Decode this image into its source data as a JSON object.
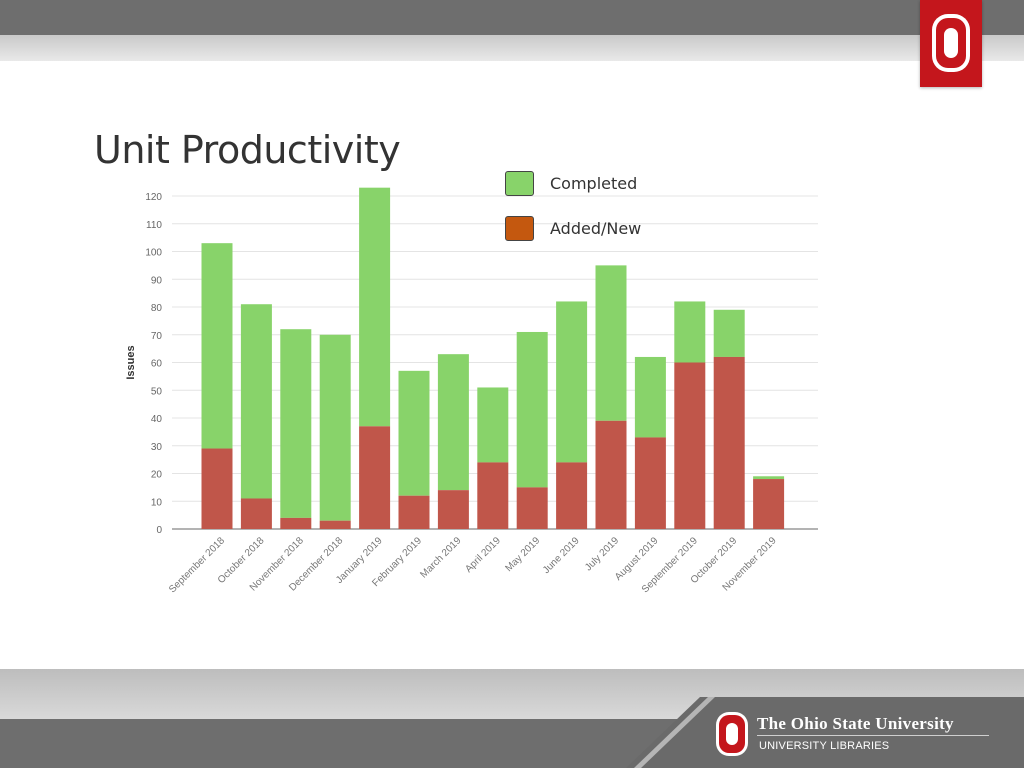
{
  "slide": {
    "title": "Unit Productivity",
    "footer": {
      "university": "The Ohio State University",
      "department": "UNIVERSITY LIBRARIES"
    }
  },
  "colors": {
    "completed": "#88d36a",
    "added_new": "#c0564a",
    "legend_added_new": "#c4580f",
    "brand_red": "#c4161c"
  },
  "chart_data": {
    "type": "bar",
    "stacked": true,
    "ylabel": "Issues",
    "xlabel": "",
    "ylim": [
      0,
      120
    ],
    "yticks": [
      0,
      10,
      20,
      30,
      40,
      50,
      60,
      70,
      80,
      90,
      100,
      110,
      120
    ],
    "grid": true,
    "legend_position": "top-right",
    "categories": [
      "September 2018",
      "October 2018",
      "November 2018",
      "December 2018",
      "January 2019",
      "February 2019",
      "March 2019",
      "April 2019",
      "May 2019",
      "June 2019",
      "July 2019",
      "August 2019",
      "September 2019",
      "October 2019",
      "November 2019"
    ],
    "series": [
      {
        "name": "Added/New",
        "values": [
          29,
          11,
          4,
          3,
          37,
          12,
          14,
          24,
          15,
          24,
          39,
          33,
          60,
          62,
          18
        ]
      },
      {
        "name": "Completed",
        "values": [
          74,
          70,
          68,
          67,
          86,
          45,
          49,
          27,
          56,
          58,
          56,
          29,
          22,
          17,
          1
        ]
      }
    ]
  }
}
